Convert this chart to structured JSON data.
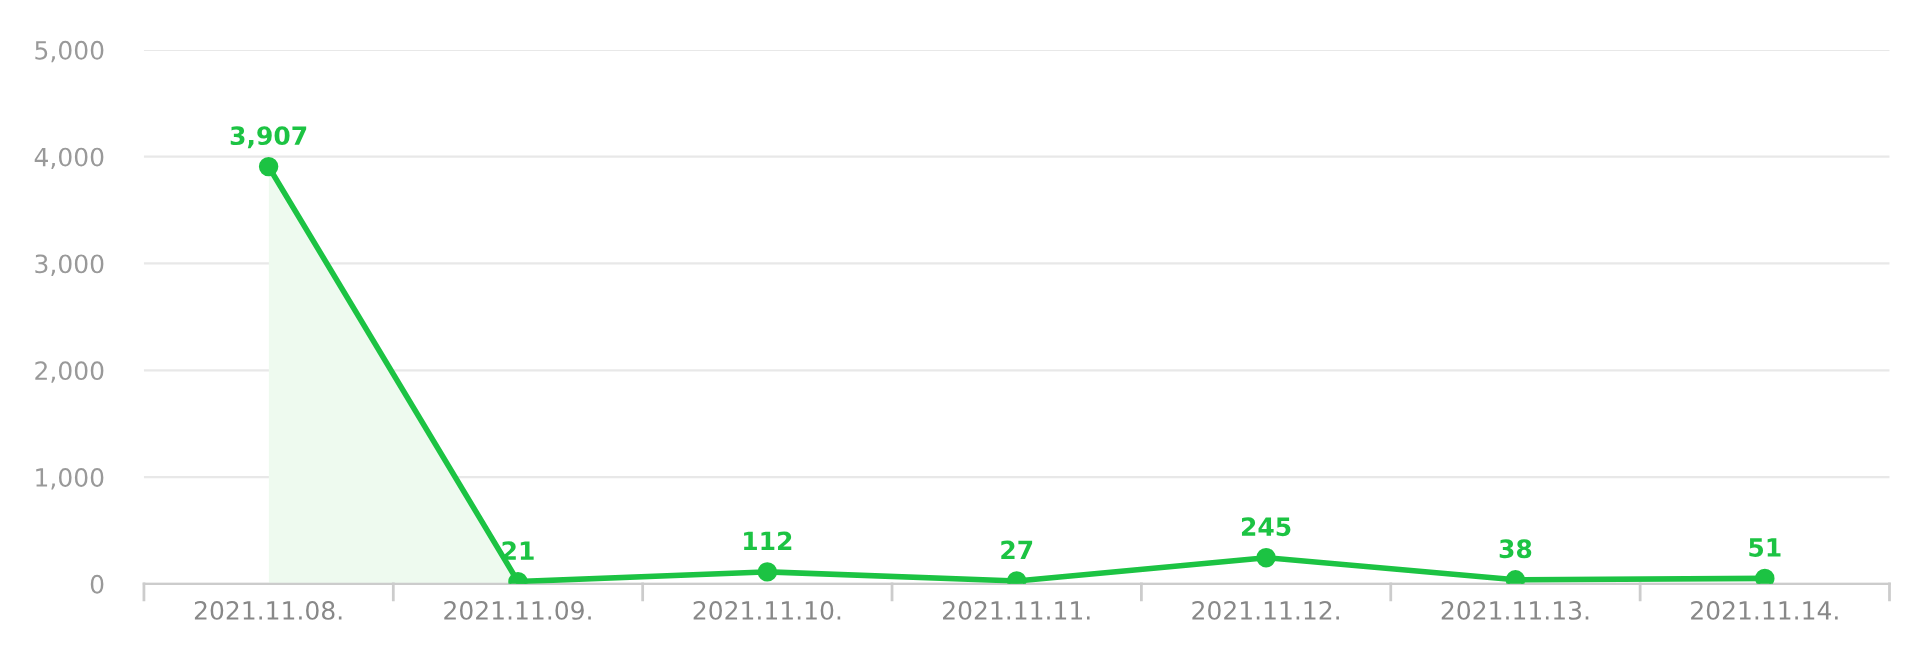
{
  "chart_data": {
    "type": "line",
    "categories": [
      "2021.11.08.",
      "2021.11.09.",
      "2021.11.10.",
      "2021.11.11.",
      "2021.11.12.",
      "2021.11.13.",
      "2021.11.14."
    ],
    "series": [
      {
        "color": "#1cc343",
        "values": [
          3907,
          21,
          112,
          27,
          245,
          38,
          51
        ]
      }
    ],
    "ylim": [
      0,
      5000
    ],
    "yticks": [
      0,
      {
        "value": 1000,
        "label": "1,000"
      },
      {
        "value": 2000,
        "label": "2,000"
      },
      {
        "value": 3000,
        "label": "3,000"
      },
      {
        "value": 4000,
        "label": "4,000"
      },
      {
        "value": 5000,
        "label": "5,000"
      }
    ],
    "value_labels": [
      "3,907",
      "21",
      "112",
      "27",
      "245",
      "38",
      "51"
    ],
    "bands": [
      {
        "axis": "x",
        "from": "2021.11.08.",
        "to": "2021.11.09.",
        "color": "#eefaef"
      }
    ],
    "grid": "y",
    "marker": "circle",
    "line_style": "solid",
    "legend": false
  }
}
